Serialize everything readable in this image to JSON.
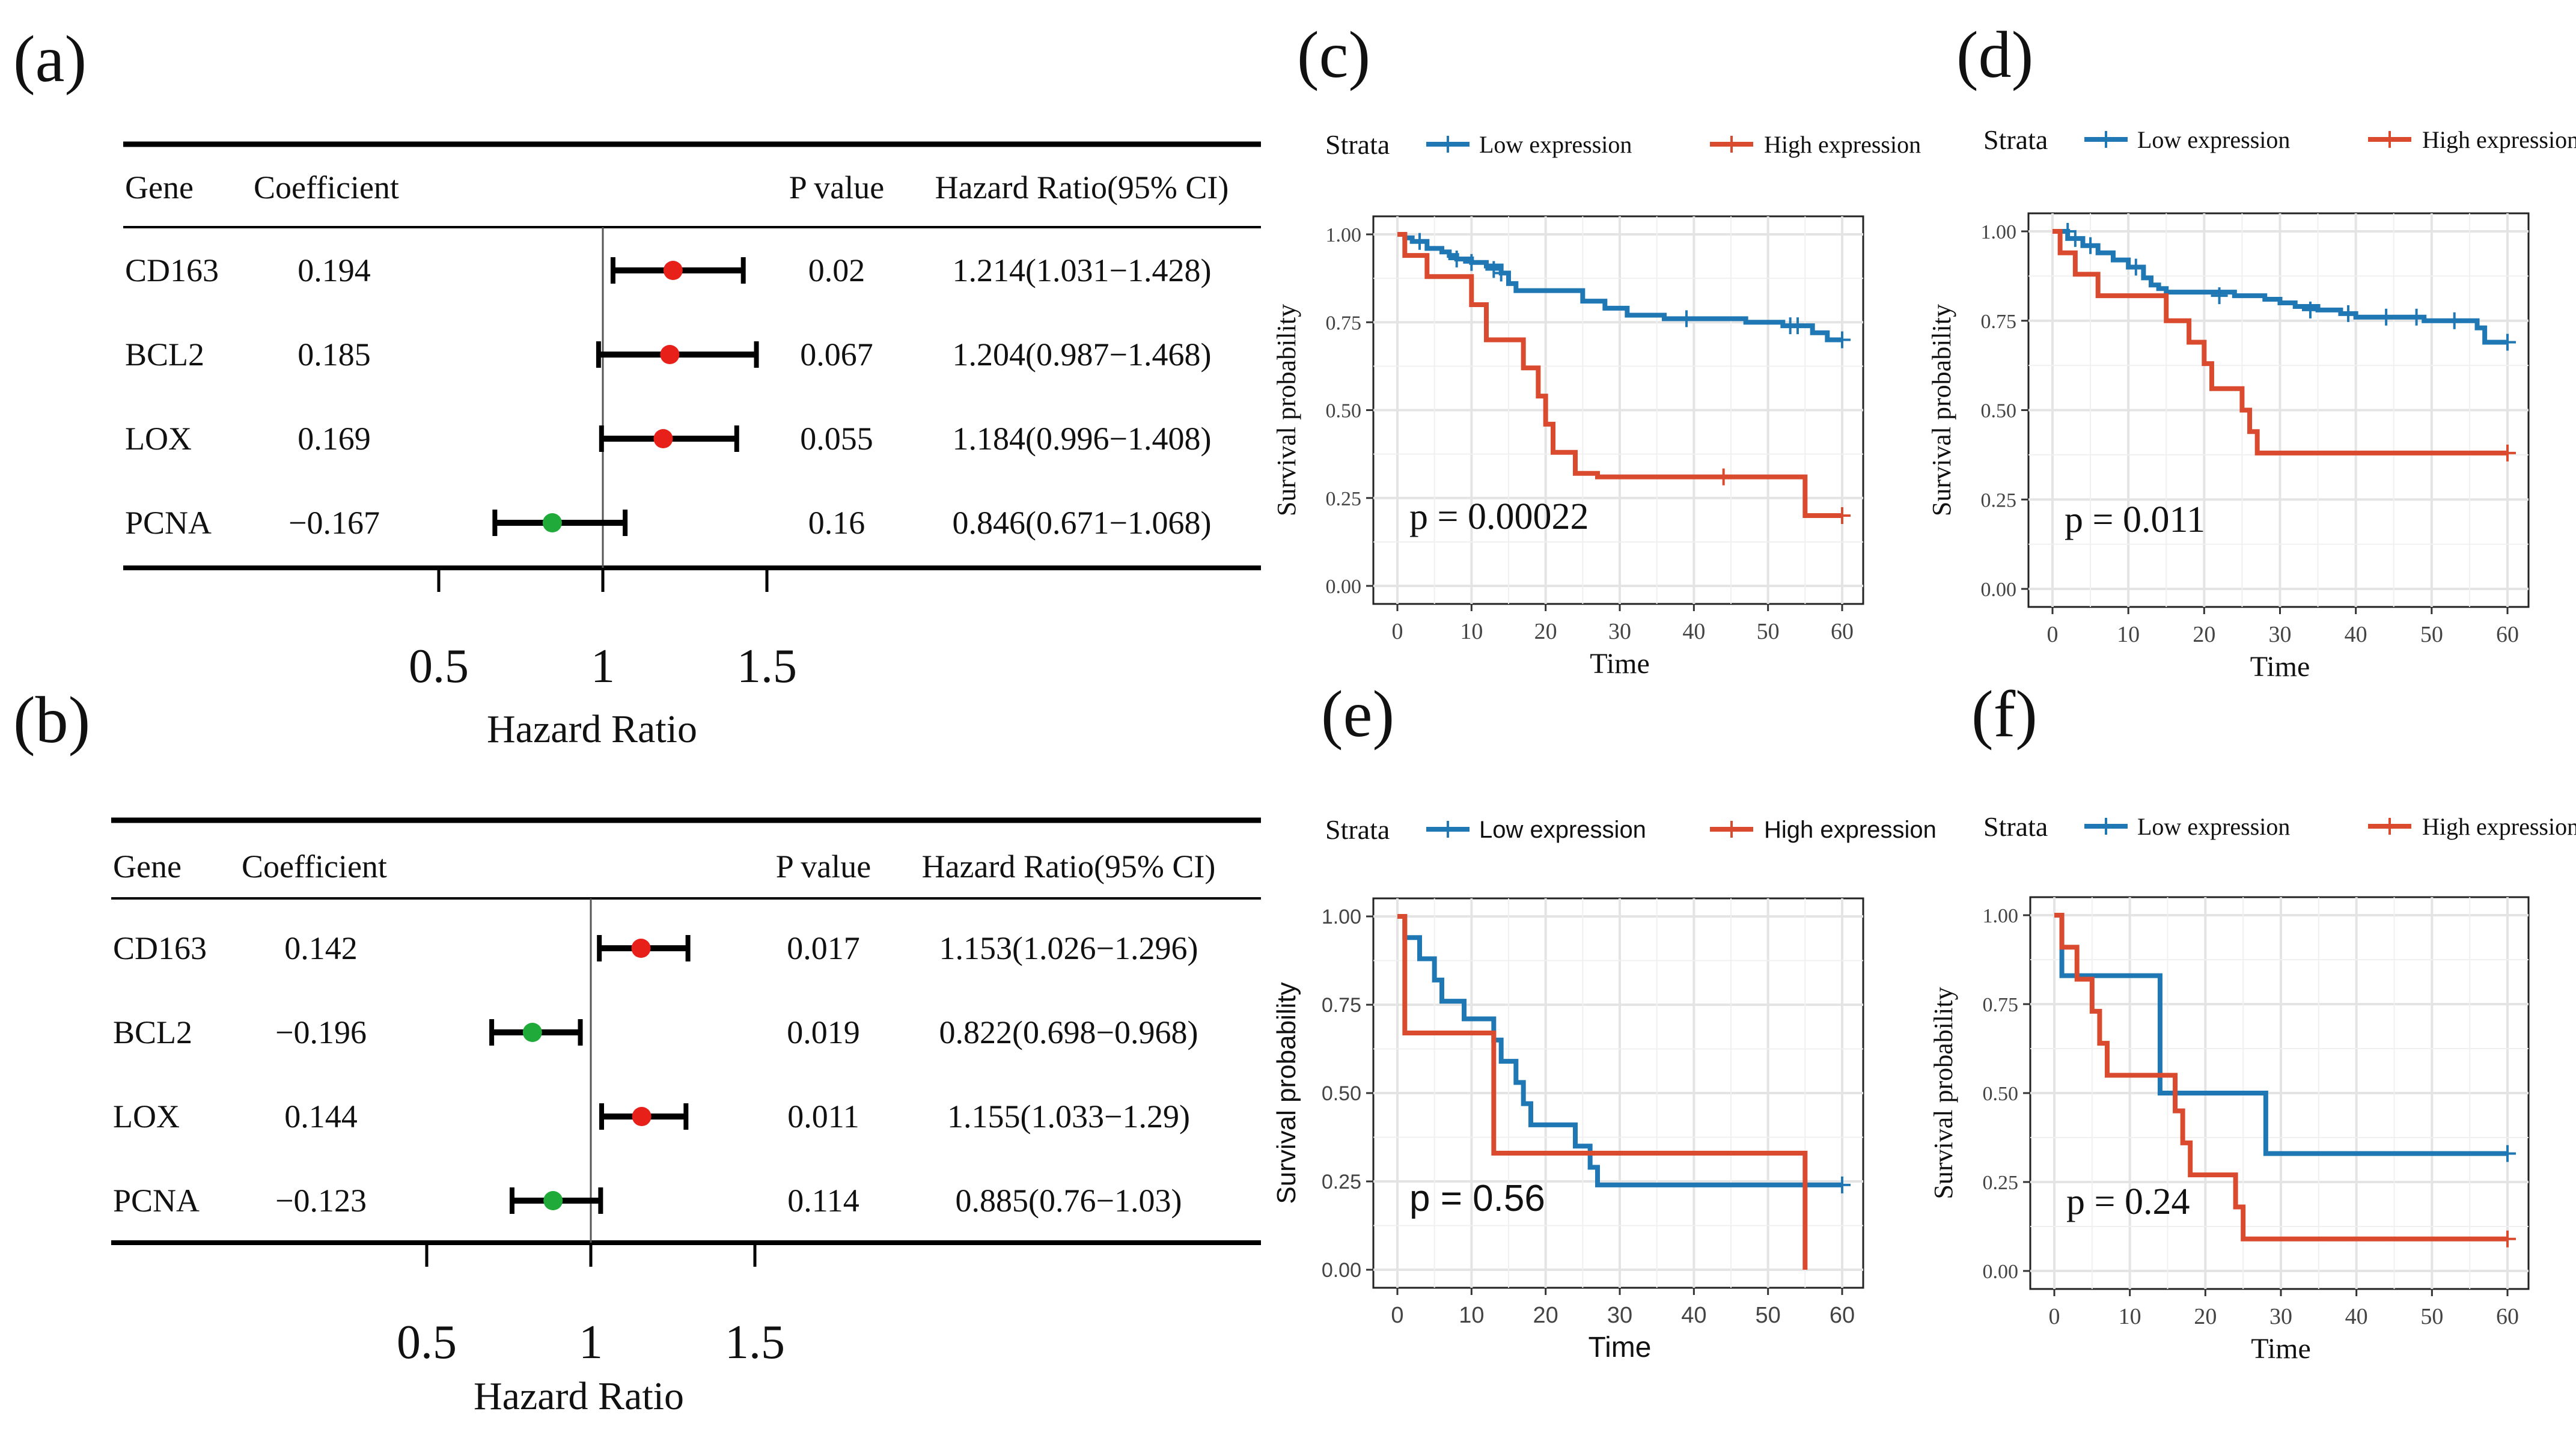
{
  "colors": {
    "low": "#1F77B4",
    "high": "#D94A2E",
    "risk": "#E8201A",
    "protective": "#1FAA3A",
    "grid": "#E4E4E4",
    "axis": "#333333",
    "text": "#111111"
  },
  "forest_header": {
    "gene": "Gene",
    "coefficient": "Coefficient",
    "pvalue": "P value",
    "hr": "Hazard Ratio(95% CI)"
  },
  "forest_axis": {
    "ticks": [
      "0.5",
      "1",
      "1.5"
    ],
    "title": "Hazard Ratio"
  },
  "km_common": {
    "legend_title": "Strata",
    "legend_low": "Low expression",
    "legend_high": "High expression",
    "ylabel": "Survival probability",
    "xlabel": "Time",
    "xticks": [
      "0",
      "10",
      "20",
      "30",
      "40",
      "50",
      "60"
    ],
    "yticks": [
      "0.00",
      "0.25",
      "0.50",
      "0.75",
      "1.00"
    ]
  },
  "chart_data": [
    {
      "panel": "(a)",
      "type": "forest",
      "xlabel": "Hazard Ratio",
      "xlim": [
        0.5,
        1.5
      ],
      "rows": [
        {
          "gene": "CD163",
          "coef": "0.194",
          "p": "0.02",
          "hr_text": "1.214(1.031−1.428)",
          "hr": 1.214,
          "lo": 1.031,
          "hi": 1.428,
          "dir": "risk"
        },
        {
          "gene": "BCL2",
          "coef": "0.185",
          "p": "0.067",
          "hr_text": "1.204(0.987−1.468)",
          "hr": 1.204,
          "lo": 0.987,
          "hi": 1.468,
          "dir": "risk"
        },
        {
          "gene": "LOX",
          "coef": "0.169",
          "p": "0.055",
          "hr_text": "1.184(0.996−1.408)",
          "hr": 1.184,
          "lo": 0.996,
          "hi": 1.408,
          "dir": "risk"
        },
        {
          "gene": "PCNA",
          "coef": "−0.167",
          "p": "0.16",
          "hr_text": "0.846(0.671−1.068)",
          "hr": 0.846,
          "lo": 0.671,
          "hi": 1.068,
          "dir": "protective"
        }
      ]
    },
    {
      "panel": "(b)",
      "type": "forest",
      "xlabel": "Hazard Ratio",
      "xlim": [
        0.5,
        1.5
      ],
      "rows": [
        {
          "gene": "CD163",
          "coef": "0.142",
          "p": "0.017",
          "hr_text": "1.153(1.026−1.296)",
          "hr": 1.153,
          "lo": 1.026,
          "hi": 1.296,
          "dir": "risk"
        },
        {
          "gene": "BCL2",
          "coef": "−0.196",
          "p": "0.019",
          "hr_text": "0.822(0.698−0.968)",
          "hr": 0.822,
          "lo": 0.698,
          "hi": 0.968,
          "dir": "protective"
        },
        {
          "gene": "LOX",
          "coef": "0.144",
          "p": "0.011",
          "hr_text": "1.155(1.033−1.29)",
          "hr": 1.155,
          "lo": 1.033,
          "hi": 1.29,
          "dir": "risk"
        },
        {
          "gene": "PCNA",
          "coef": "−0.123",
          "p": "0.114",
          "hr_text": "0.885(0.76−1.03)",
          "hr": 0.885,
          "lo": 0.76,
          "hi": 1.03,
          "dir": "protective"
        }
      ]
    },
    {
      "panel": "(c)",
      "type": "line",
      "pvalue": "p = 0.00022",
      "xlim": [
        0,
        60
      ],
      "ylim": [
        0,
        1
      ],
      "series": [
        {
          "name": "Low expression",
          "steps": [
            [
              0,
              1.0
            ],
            [
              1,
              0.99
            ],
            [
              2,
              0.98
            ],
            [
              4,
              0.96
            ],
            [
              6,
              0.95
            ],
            [
              7,
              0.94
            ],
            [
              8,
              0.93
            ],
            [
              10,
              0.92
            ],
            [
              12,
              0.91
            ],
            [
              14,
              0.89
            ],
            [
              15,
              0.86
            ],
            [
              16,
              0.84
            ],
            [
              25,
              0.81
            ],
            [
              28,
              0.79
            ],
            [
              31,
              0.77
            ],
            [
              36,
              0.76
            ],
            [
              47,
              0.75
            ],
            [
              52,
              0.74
            ],
            [
              56,
              0.72
            ],
            [
              58,
              0.7
            ],
            [
              60,
              0.7
            ]
          ],
          "censors": [
            [
              3,
              0.98
            ],
            [
              8,
              0.93
            ],
            [
              10,
              0.92
            ],
            [
              13,
              0.9
            ],
            [
              14,
              0.89
            ],
            [
              39,
              0.76
            ],
            [
              53,
              0.74
            ],
            [
              54,
              0.74
            ],
            [
              60,
              0.7
            ]
          ]
        },
        {
          "name": "High expression",
          "steps": [
            [
              0,
              1.0
            ],
            [
              1,
              0.94
            ],
            [
              4,
              0.88
            ],
            [
              10,
              0.8
            ],
            [
              12,
              0.7
            ],
            [
              17,
              0.62
            ],
            [
              19,
              0.54
            ],
            [
              20,
              0.46
            ],
            [
              21,
              0.38
            ],
            [
              24,
              0.32
            ],
            [
              27,
              0.31
            ],
            [
              44,
              0.31
            ],
            [
              55,
              0.2
            ],
            [
              60,
              0.2
            ]
          ],
          "censors": [
            [
              44,
              0.31
            ],
            [
              60,
              0.2
            ]
          ]
        }
      ]
    },
    {
      "panel": "(d)",
      "type": "line",
      "pvalue": "p = 0.011",
      "xlim": [
        0,
        60
      ],
      "ylim": [
        0,
        1
      ],
      "series": [
        {
          "name": "Low expression",
          "steps": [
            [
              0,
              1.0
            ],
            [
              2,
              0.98
            ],
            [
              4,
              0.96
            ],
            [
              6,
              0.94
            ],
            [
              8,
              0.92
            ],
            [
              10,
              0.9
            ],
            [
              12,
              0.87
            ],
            [
              13,
              0.85
            ],
            [
              14,
              0.84
            ],
            [
              15,
              0.83
            ],
            [
              24,
              0.82
            ],
            [
              28,
              0.81
            ],
            [
              30,
              0.8
            ],
            [
              32,
              0.79
            ],
            [
              35,
              0.78
            ],
            [
              38,
              0.77
            ],
            [
              40,
              0.76
            ],
            [
              49,
              0.75
            ],
            [
              56,
              0.73
            ],
            [
              57,
              0.69
            ],
            [
              60,
              0.69
            ]
          ],
          "censors": [
            [
              2,
              1.0
            ],
            [
              3,
              0.98
            ],
            [
              5,
              0.96
            ],
            [
              11,
              0.9
            ],
            [
              22,
              0.82
            ],
            [
              34,
              0.78
            ],
            [
              39,
              0.77
            ],
            [
              44,
              0.76
            ],
            [
              48,
              0.76
            ],
            [
              53,
              0.75
            ],
            [
              60,
              0.69
            ]
          ]
        },
        {
          "name": "High expression",
          "steps": [
            [
              0,
              1.0
            ],
            [
              1,
              0.94
            ],
            [
              3,
              0.88
            ],
            [
              6,
              0.82
            ],
            [
              15,
              0.75
            ],
            [
              18,
              0.69
            ],
            [
              20,
              0.63
            ],
            [
              21,
              0.56
            ],
            [
              25,
              0.5
            ],
            [
              26,
              0.44
            ],
            [
              27,
              0.38
            ],
            [
              60,
              0.38
            ]
          ],
          "censors": [
            [
              60,
              0.38
            ]
          ]
        }
      ]
    },
    {
      "panel": "(e)",
      "type": "line",
      "pvalue": "p = 0.56",
      "xlim": [
        0,
        60
      ],
      "ylim": [
        0,
        1
      ],
      "series": [
        {
          "name": "Low expression",
          "steps": [
            [
              0,
              1.0
            ],
            [
              1,
              0.94
            ],
            [
              3,
              0.88
            ],
            [
              5,
              0.82
            ],
            [
              6,
              0.76
            ],
            [
              9,
              0.71
            ],
            [
              13,
              0.65
            ],
            [
              14,
              0.59
            ],
            [
              16,
              0.53
            ],
            [
              17,
              0.47
            ],
            [
              18,
              0.41
            ],
            [
              24,
              0.35
            ],
            [
              26,
              0.29
            ],
            [
              27,
              0.24
            ],
            [
              60,
              0.24
            ]
          ],
          "censors": [
            [
              60,
              0.24
            ]
          ]
        },
        {
          "name": "High expression",
          "steps": [
            [
              0,
              1.0
            ],
            [
              1,
              0.67
            ],
            [
              13,
              0.33
            ],
            [
              55,
              0.0
            ]
          ],
          "censors": []
        }
      ]
    },
    {
      "panel": "(f)",
      "type": "line",
      "pvalue": "p = 0.24",
      "xlim": [
        0,
        60
      ],
      "ylim": [
        0,
        1
      ],
      "series": [
        {
          "name": "Low expression",
          "steps": [
            [
              0,
              1.0
            ],
            [
              1,
              0.83
            ],
            [
              14,
              0.5
            ],
            [
              28,
              0.33
            ],
            [
              60,
              0.33
            ]
          ],
          "censors": [
            [
              60,
              0.33
            ]
          ]
        },
        {
          "name": "High expression",
          "steps": [
            [
              0,
              1.0
            ],
            [
              1,
              0.91
            ],
            [
              3,
              0.82
            ],
            [
              5,
              0.73
            ],
            [
              6,
              0.64
            ],
            [
              7,
              0.55
            ],
            [
              12,
              0.55
            ],
            [
              16,
              0.45
            ],
            [
              17,
              0.36
            ],
            [
              18,
              0.27
            ],
            [
              24,
              0.18
            ],
            [
              25,
              0.09
            ],
            [
              60,
              0.09
            ]
          ],
          "censors": [
            [
              60,
              0.09
            ]
          ]
        }
      ]
    }
  ]
}
